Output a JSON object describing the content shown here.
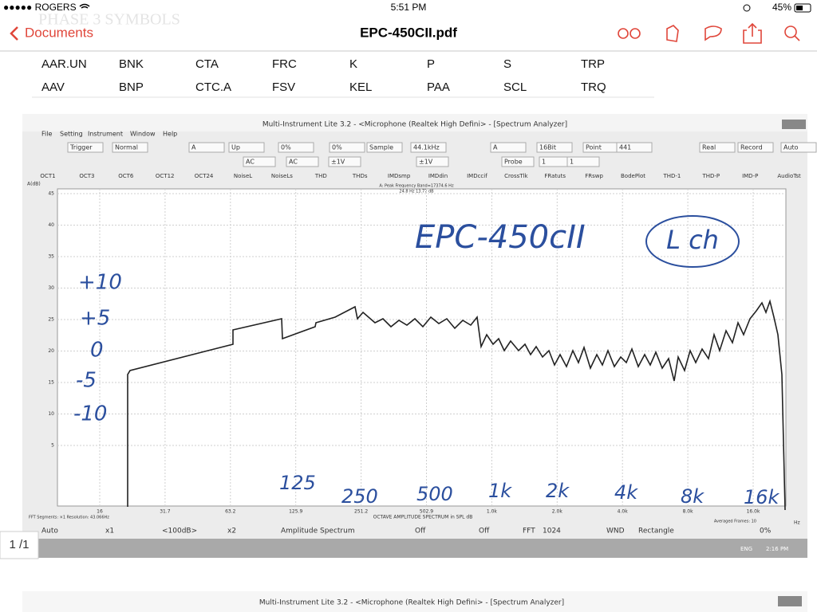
{
  "status_bar": {
    "carrier": "●●●●● ROGERS",
    "time": "5:51 PM",
    "battery": "45%"
  },
  "nav_bar": {
    "back": "Documents",
    "title": "EPC-450CII.pdf"
  },
  "document": {
    "faded_heading": "PHASE 3 SYMBOLS",
    "symbols": [
      [
        "AAR.UN",
        "BNK",
        "CTA",
        "FRC",
        "K",
        "P",
        "S",
        "TRP"
      ],
      [
        "AAV",
        "BNP",
        "CTC.A",
        "FSV",
        "KEL",
        "PAA",
        "SCL",
        "TRQ"
      ]
    ],
    "scan": {
      "window_title": "Multi-Instrument Lite 3.2  -  <Microphone (Realtek High Defini> - [Spectrum Analyzer]",
      "menu": [
        "File",
        "Setting",
        "Instrument",
        "Window",
        "Help"
      ],
      "toolbar_row1": [
        "Trigger",
        "Normal",
        "A",
        "Up",
        "0%",
        "0%",
        "Sample",
        "44.1kHz",
        "A",
        "16Bit",
        "Point",
        "441",
        "Real",
        "Record",
        "Auto"
      ],
      "toolbar_row2": [
        "AC",
        "AC",
        "±1V",
        "±1V",
        "Probe",
        "1",
        "1"
      ],
      "tabs": [
        "OCT1",
        "OCT3",
        "OCT6",
        "OCT12",
        "OCT24",
        "NoiseL",
        "NoiseLs",
        "THD",
        "THDs",
        "IMDsmp",
        "IMDdin",
        "IMDccif",
        "CrossTlk",
        "FRatuts",
        "FRswp",
        "BodePlot",
        "THD-1",
        "THD-P",
        "IMD-P",
        "AudioTst"
      ],
      "y_axis_unit": "A(dB)",
      "y_ticks": [
        "45",
        "40",
        "35",
        "30",
        "25",
        "20",
        "15",
        "10",
        "5"
      ],
      "x_ticks": [
        "16",
        "31.7",
        "63.2",
        "125.9",
        "251.2",
        "502.9",
        "1.0k",
        "2.0k",
        "4.0k",
        "8.0k",
        "16.0k"
      ],
      "x_unit": "Hz",
      "peak_info": [
        "A: Peak Frequency Band=17374.6 Hz",
        "24.8 Hz  13.77 dB"
      ],
      "x_axis_title": "OCTAVE AMPLITUDE SPECTRUM in SPL dB",
      "fft_info": "FFT Segments: ×1   Resolution: 43.066Hz",
      "averaged_frames": "Averaged Frames: 10",
      "controls": [
        "Auto",
        "x1",
        "<100dB>",
        "x2",
        "Amplitude Spectrum",
        "Off",
        "Off",
        "FFT",
        "1024",
        "WND",
        "Rectangle",
        "0%"
      ],
      "taskbar": {
        "lang": "ENG",
        "time": "2:16 PM"
      }
    },
    "annotations": {
      "model": "EPC-450cII",
      "channel": "L ch",
      "levels": [
        "+10",
        "+5",
        "0",
        "-5",
        "-10"
      ],
      "frequencies": [
        "125",
        "250",
        "500",
        "1k",
        "2k",
        "4k",
        "8k",
        "16k"
      ]
    },
    "next_window_title": "Multi-Instrument Lite 3.2  -  <Microphone (Realtek High Defini> - [Spectrum Analyzer]"
  },
  "page_indicator": "1 /1"
}
